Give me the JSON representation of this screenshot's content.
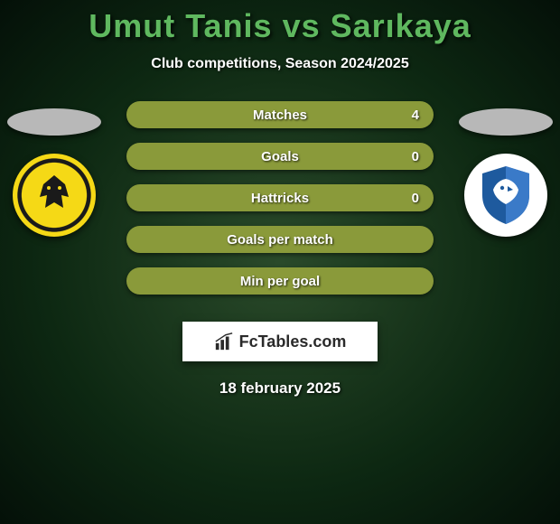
{
  "title": "Umut Tanis vs Sarıkaya",
  "subtitle": "Club competitions, Season 2024/2025",
  "date": "18 february 2025",
  "logo_text": "FcTables.com",
  "colors": {
    "title": "#5fb85f",
    "bar_bg": "#8a9a3a",
    "bar_fill": "#7ba843"
  },
  "stats": [
    {
      "label": "Matches",
      "value": "4",
      "fill_pct": 0
    },
    {
      "label": "Goals",
      "value": "0",
      "fill_pct": 0
    },
    {
      "label": "Hattricks",
      "value": "0",
      "fill_pct": 0
    },
    {
      "label": "Goals per match",
      "value": "",
      "fill_pct": 0
    },
    {
      "label": "Min per goal",
      "value": "",
      "fill_pct": 0
    }
  ],
  "badges": {
    "left": {
      "name": "Malatya",
      "primary": "#f5d916",
      "secondary": "#1a1a1a"
    },
    "right": {
      "name": "Erzurumspor",
      "primary": "#1e5a9e",
      "secondary": "#ffffff"
    }
  }
}
